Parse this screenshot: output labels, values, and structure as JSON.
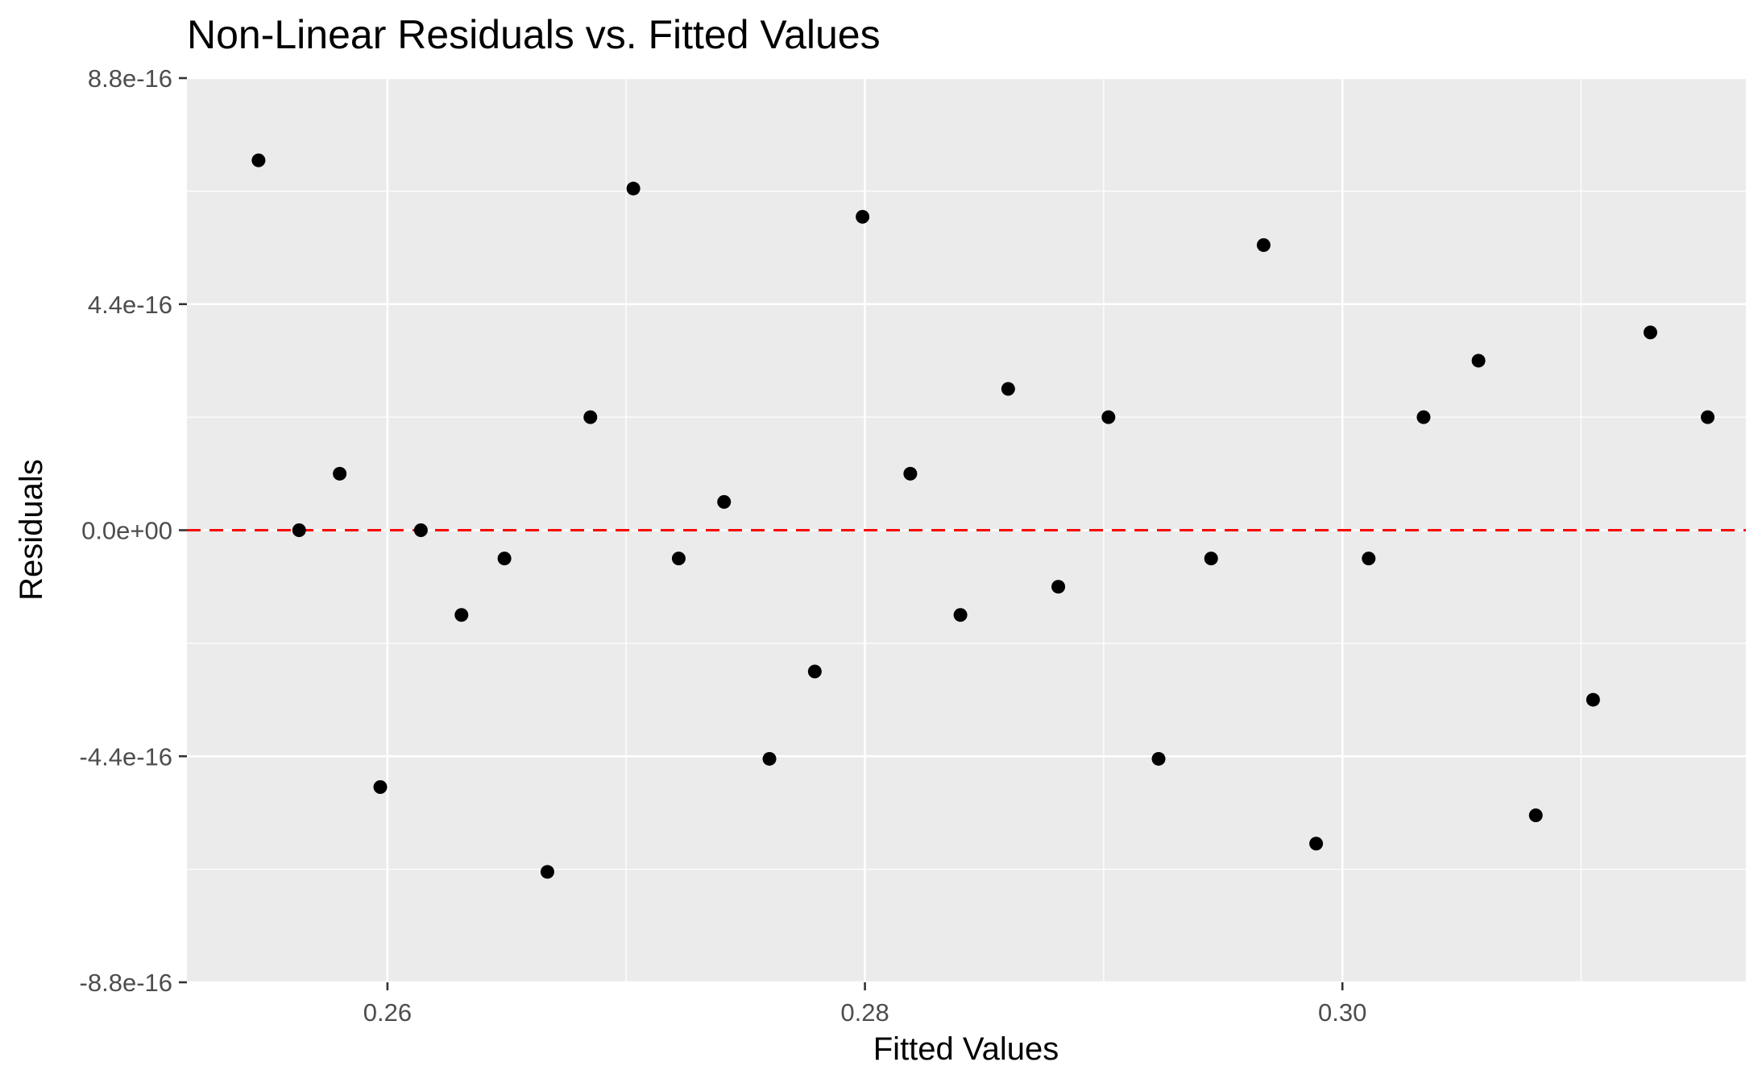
{
  "chart_data": {
    "type": "scatter",
    "title": "Non-Linear Residuals vs. Fitted Values",
    "xlabel": "Fitted Values",
    "ylabel": "Residuals",
    "xlim": [
      0.2516,
      0.3169
    ],
    "ylim": [
      -8.8e-16,
      8.8e-16
    ],
    "x_ticks": [
      {
        "value": 0.26,
        "label": "0.26"
      },
      {
        "value": 0.28,
        "label": "0.28"
      },
      {
        "value": 0.3,
        "label": "0.30"
      }
    ],
    "y_ticks": [
      {
        "value": -8.8e-16,
        "label": "-8.8e-16"
      },
      {
        "value": -4.4e-16,
        "label": "-4.4e-16"
      },
      {
        "value": 0,
        "label": "0.0e+00"
      },
      {
        "value": 4.4e-16,
        "label": "4.4e-16"
      },
      {
        "value": 8.8e-16,
        "label": "8.8e-16"
      }
    ],
    "grid": true,
    "reference_line": {
      "y": 0,
      "style": "dashed",
      "color": "#ff0000"
    },
    "points": [
      {
        "x": 0.2546,
        "y": 7.2e-16
      },
      {
        "x": 0.2563,
        "y": 0
      },
      {
        "x": 0.258,
        "y": 1.1e-16
      },
      {
        "x": 0.2597,
        "y": -5e-16
      },
      {
        "x": 0.2614,
        "y": 0
      },
      {
        "x": 0.2631,
        "y": -1.65e-16
      },
      {
        "x": 0.2649,
        "y": -5.5e-17
      },
      {
        "x": 0.2667,
        "y": -6.65e-16
      },
      {
        "x": 0.2685,
        "y": 2.2e-16
      },
      {
        "x": 0.2703,
        "y": 6.65e-16
      },
      {
        "x": 0.2722,
        "y": -5.5e-17
      },
      {
        "x": 0.2741,
        "y": 5.5e-17
      },
      {
        "x": 0.276,
        "y": -4.45e-16
      },
      {
        "x": 0.2779,
        "y": -2.75e-16
      },
      {
        "x": 0.2799,
        "y": 6.1e-16
      },
      {
        "x": 0.2819,
        "y": 1.1e-16
      },
      {
        "x": 0.284,
        "y": -1.65e-16
      },
      {
        "x": 0.286,
        "y": 2.75e-16
      },
      {
        "x": 0.2881,
        "y": -1.1e-16
      },
      {
        "x": 0.2902,
        "y": 2.2e-16
      },
      {
        "x": 0.2923,
        "y": -4.45e-16
      },
      {
        "x": 0.2945,
        "y": -5.5e-17
      },
      {
        "x": 0.2967,
        "y": 5.55e-16
      },
      {
        "x": 0.2989,
        "y": -6.1e-16
      },
      {
        "x": 0.3011,
        "y": -5.5e-17
      },
      {
        "x": 0.3034,
        "y": 2.2e-16
      },
      {
        "x": 0.3057,
        "y": 3.3e-16
      },
      {
        "x": 0.3081,
        "y": -5.55e-16
      },
      {
        "x": 0.3105,
        "y": -3.3e-16
      },
      {
        "x": 0.3129,
        "y": 3.85e-16
      },
      {
        "x": 0.3153,
        "y": 2.2e-16
      }
    ],
    "colors": {
      "panel": "#ebebeb",
      "grid_major": "#ffffff",
      "grid_minor": "#f7f7f7",
      "point": "#000000",
      "reference_line": "#ff0000",
      "tick_label": "#4d4d4d",
      "tick_mark": "#333333"
    }
  }
}
